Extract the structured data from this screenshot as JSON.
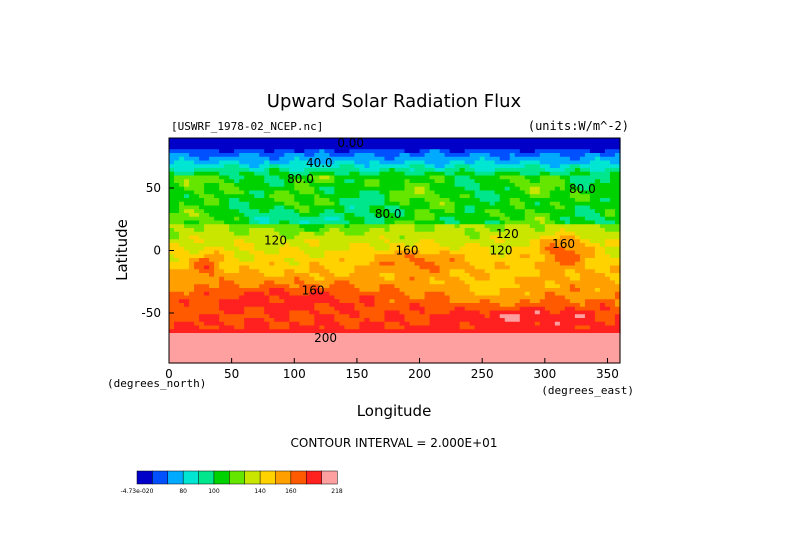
{
  "chart_data": {
    "type": "heatmap",
    "title": "Upward Solar Radiation Flux",
    "file_label": "[USWRF_1978-02_NCEP.nc]",
    "units_label": "(units:W/m^-2)",
    "xlabel": "Longitude",
    "ylabel": "Latitude",
    "x_unit_label": "(degrees_east)",
    "y_unit_label": "(degrees_north)",
    "xlim": [
      0,
      360
    ],
    "ylim": [
      -90,
      90
    ],
    "x_ticks": [
      0,
      50,
      100,
      150,
      200,
      250,
      300,
      350
    ],
    "y_ticks": [
      -50,
      0,
      50
    ],
    "contour_interval_text": "CONTOUR INTERVAL = 2.000E+01",
    "contour_labels": [
      {
        "text": "0.00",
        "lon": 145,
        "lat": 83
      },
      {
        "text": "40.0",
        "lon": 120,
        "lat": 67
      },
      {
        "text": "80.0",
        "lon": 105,
        "lat": 54
      },
      {
        "text": "80.0",
        "lon": 330,
        "lat": 46
      },
      {
        "text": "80.0",
        "lon": 175,
        "lat": 26
      },
      {
        "text": "120",
        "lon": 85,
        "lat": 5
      },
      {
        "text": "120",
        "lon": 270,
        "lat": 10
      },
      {
        "text": "120",
        "lon": 265,
        "lat": -3
      },
      {
        "text": "160",
        "lon": 190,
        "lat": -3
      },
      {
        "text": "160",
        "lon": 315,
        "lat": 2
      },
      {
        "text": "160",
        "lon": 115,
        "lat": -35
      },
      {
        "text": "200",
        "lon": 125,
        "lat": -73
      }
    ],
    "colorbar": {
      "colors": [
        "#0000c8",
        "#0050ff",
        "#00aaff",
        "#00e6d2",
        "#00e68c",
        "#00d200",
        "#64e600",
        "#c8e600",
        "#ffd200",
        "#ffa000",
        "#ff5a00",
        "#ff2020",
        "#ffa0a0"
      ],
      "tick_labels": [
        "-4.73e-020",
        "80",
        "100",
        "140",
        "160",
        "218"
      ]
    }
  }
}
